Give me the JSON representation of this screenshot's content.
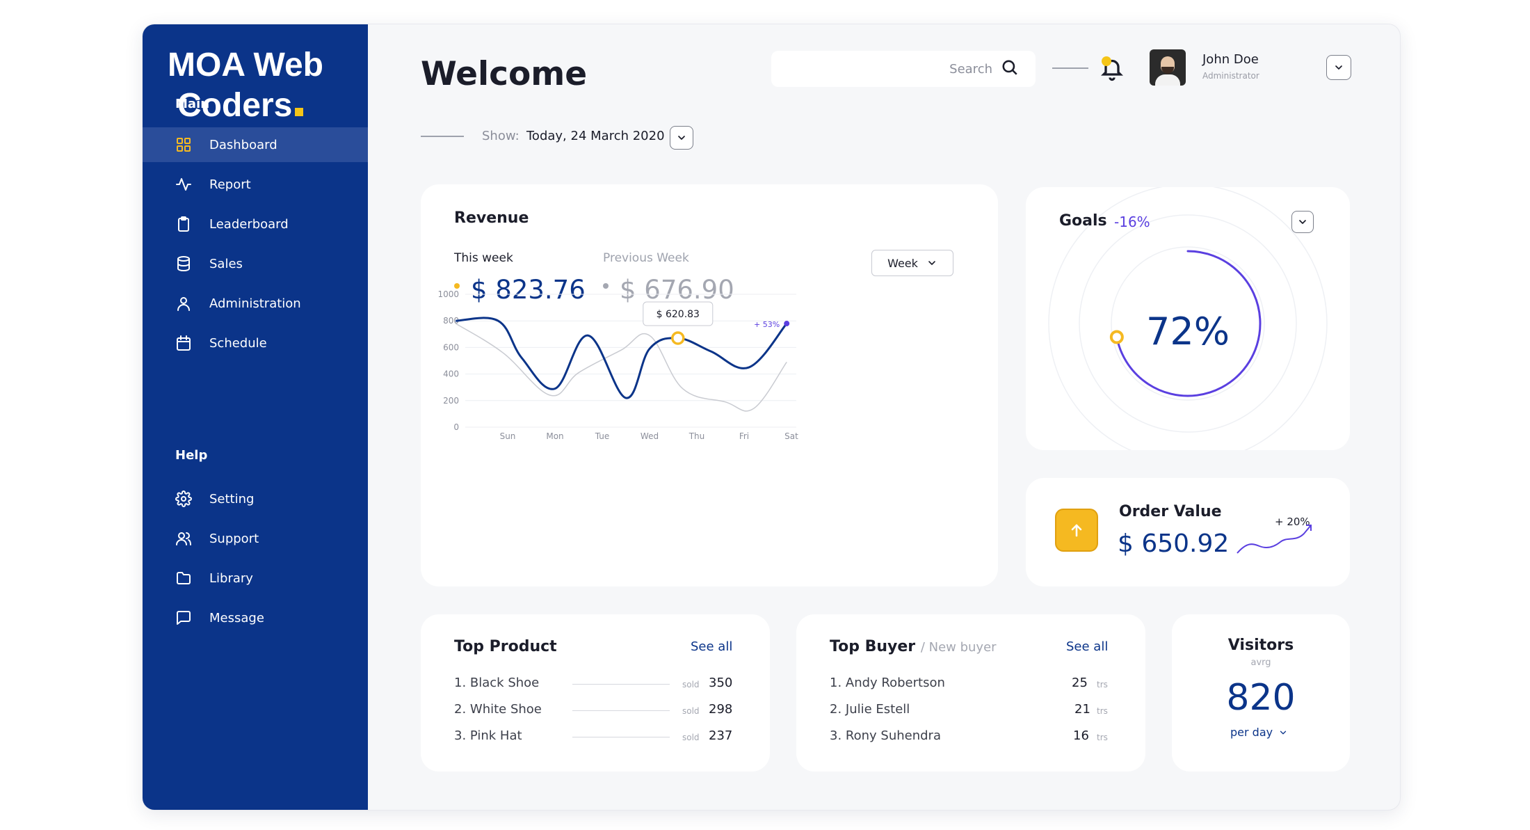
{
  "brand": {
    "line1": "MOA Web",
    "line2": "Coders"
  },
  "sidebar": {
    "main_label": "Main",
    "main_items": [
      {
        "label": "Dashboard",
        "icon": "grid-icon",
        "active": true
      },
      {
        "label": "Report",
        "icon": "activity-icon"
      },
      {
        "label": "Leaderboard",
        "icon": "clipboard-icon"
      },
      {
        "label": "Sales",
        "icon": "database-icon"
      },
      {
        "label": "Administration",
        "icon": "user-icon"
      },
      {
        "label": "Schedule",
        "icon": "calendar-icon"
      }
    ],
    "help_label": "Help",
    "help_items": [
      {
        "label": "Setting",
        "icon": "gear-icon"
      },
      {
        "label": "Support",
        "icon": "users-icon"
      },
      {
        "label": "Library",
        "icon": "folder-icon"
      },
      {
        "label": "Message",
        "icon": "message-icon"
      }
    ]
  },
  "header": {
    "title": "Welcome",
    "search_placeholder": "Search",
    "user": {
      "name": "John Doe",
      "role": "Administrator"
    },
    "show_label": "Show:",
    "show_value": "Today, 24 March 2020"
  },
  "revenue": {
    "title": "Revenue",
    "this_week_label": "This week",
    "this_week_value": "$ 823.76",
    "prev_week_label": "Previous Week",
    "prev_week_value": "$ 676.90",
    "period_select": "Week",
    "tooltip": "$ 620.83",
    "change_label": "+ 53%"
  },
  "goals": {
    "title": "Goals",
    "change": "-16%",
    "value": "72%",
    "progress": 0.72
  },
  "order_value": {
    "title": "Order Value",
    "value": "$ 650.92",
    "trend": "+ 20%"
  },
  "top_product": {
    "title": "Top Product",
    "see_all": "See all",
    "unit": "sold",
    "items": [
      {
        "name": "1. Black Shoe",
        "value": "350"
      },
      {
        "name": "2. White Shoe",
        "value": "298"
      },
      {
        "name": "3. Pink Hat",
        "value": "237"
      }
    ]
  },
  "top_buyer": {
    "title": "Top Buyer",
    "subtitle": "/ New buyer",
    "see_all": "See all",
    "unit": "trs",
    "items": [
      {
        "name": "1. Andy Robertson",
        "value": "25"
      },
      {
        "name": "2. Julie Estell",
        "value": "21"
      },
      {
        "name": "3. Rony Suhendra",
        "value": "16"
      }
    ]
  },
  "visitors": {
    "title": "Visitors",
    "subtitle": "avrg",
    "value": "820",
    "period": "per day"
  },
  "chart_data": {
    "type": "line",
    "categories": [
      "Sun",
      "Mon",
      "Tue",
      "Wed",
      "Thu",
      "Fri",
      "Sat"
    ],
    "y_ticks": [
      "1000",
      "800",
      "600",
      "400",
      "200",
      "0"
    ],
    "ylim": [
      0,
      1000
    ],
    "series": [
      {
        "x": [
          -1.1,
          -0.2,
          0.3,
          1.0,
          1.7,
          2.5,
          3.0,
          3.6,
          4.3,
          5.1,
          5.9
        ],
        "values": [
          800,
          800,
          520,
          290,
          690,
          220,
          590,
          670,
          570,
          450,
          780
        ]
      },
      {
        "x": [
          -1.1,
          -0.1,
          0.9,
          1.5,
          2.4,
          3.0,
          3.7,
          4.6,
          5.2,
          5.9
        ],
        "values": [
          780,
          560,
          240,
          410,
          580,
          690,
          290,
          190,
          140,
          490
        ]
      }
    ],
    "highlight": {
      "x": 3.6,
      "y": 670
    },
    "end_point": {
      "x": 5.9,
      "y": 780
    },
    "colors": {
      "series1": "#0b3489",
      "series2": "#c9cbd1",
      "marker": "#f5b921",
      "end": "#5a3fe0"
    },
    "grid": true
  }
}
